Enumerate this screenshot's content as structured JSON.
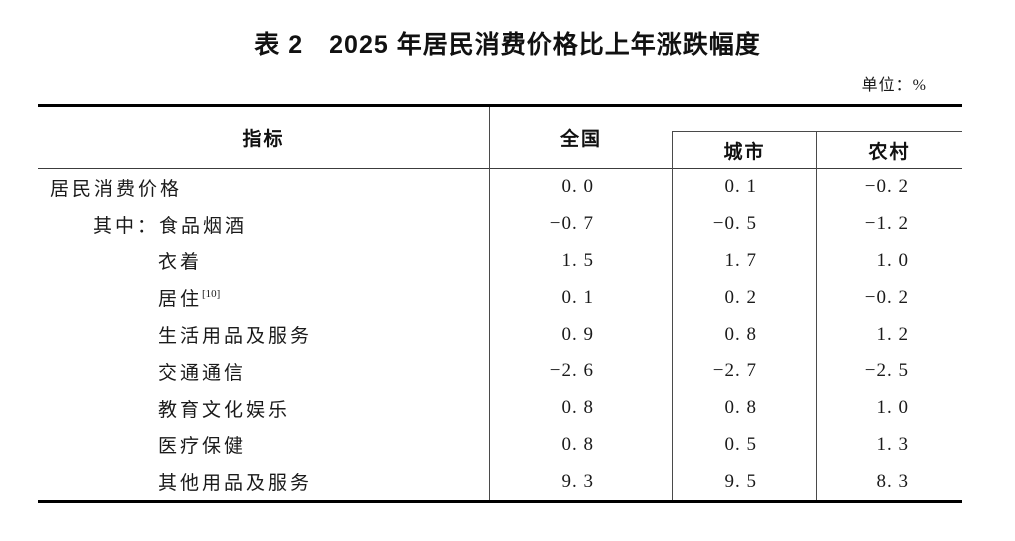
{
  "title": "表 2　2025 年居民消费价格比上年涨跌幅度",
  "unit_label": "单位：%",
  "colors": {
    "background": "#ffffff",
    "text": "#1a1a1a",
    "rule_heavy": "#000000",
    "rule_light": "#4a4a4a"
  },
  "table": {
    "header": {
      "indicator": "指标",
      "national": "全国",
      "urban": "城市",
      "rural": "农村"
    },
    "rows": [
      {
        "prefix": "",
        "label": "居民消费价格",
        "sup": "",
        "indent": 0,
        "national": "0. 0",
        "urban": "0. 1",
        "rural": "−0. 2"
      },
      {
        "prefix": "其中：",
        "label": "食品烟酒",
        "sup": "",
        "indent": 1,
        "national": "−0. 7",
        "urban": "−0. 5",
        "rural": "−1. 2"
      },
      {
        "prefix": "",
        "label": "衣着",
        "sup": "",
        "indent": 2,
        "national": "1. 5",
        "urban": "1. 7",
        "rural": "1. 0"
      },
      {
        "prefix": "",
        "label": "居住",
        "sup": "[10]",
        "indent": 2,
        "national": "0. 1",
        "urban": "0. 2",
        "rural": "−0. 2"
      },
      {
        "prefix": "",
        "label": "生活用品及服务",
        "sup": "",
        "indent": 2,
        "national": "0. 9",
        "urban": "0. 8",
        "rural": "1. 2"
      },
      {
        "prefix": "",
        "label": "交通通信",
        "sup": "",
        "indent": 2,
        "national": "−2. 6",
        "urban": "−2. 7",
        "rural": "−2. 5"
      },
      {
        "prefix": "",
        "label": "教育文化娱乐",
        "sup": "",
        "indent": 2,
        "national": "0. 8",
        "urban": "0. 8",
        "rural": "1. 0"
      },
      {
        "prefix": "",
        "label": "医疗保健",
        "sup": "",
        "indent": 2,
        "national": "0. 8",
        "urban": "0. 5",
        "rural": "1. 3"
      },
      {
        "prefix": "",
        "label": "其他用品及服务",
        "sup": "",
        "indent": 2,
        "national": "9. 3",
        "urban": "9. 5",
        "rural": "8. 3"
      }
    ]
  }
}
